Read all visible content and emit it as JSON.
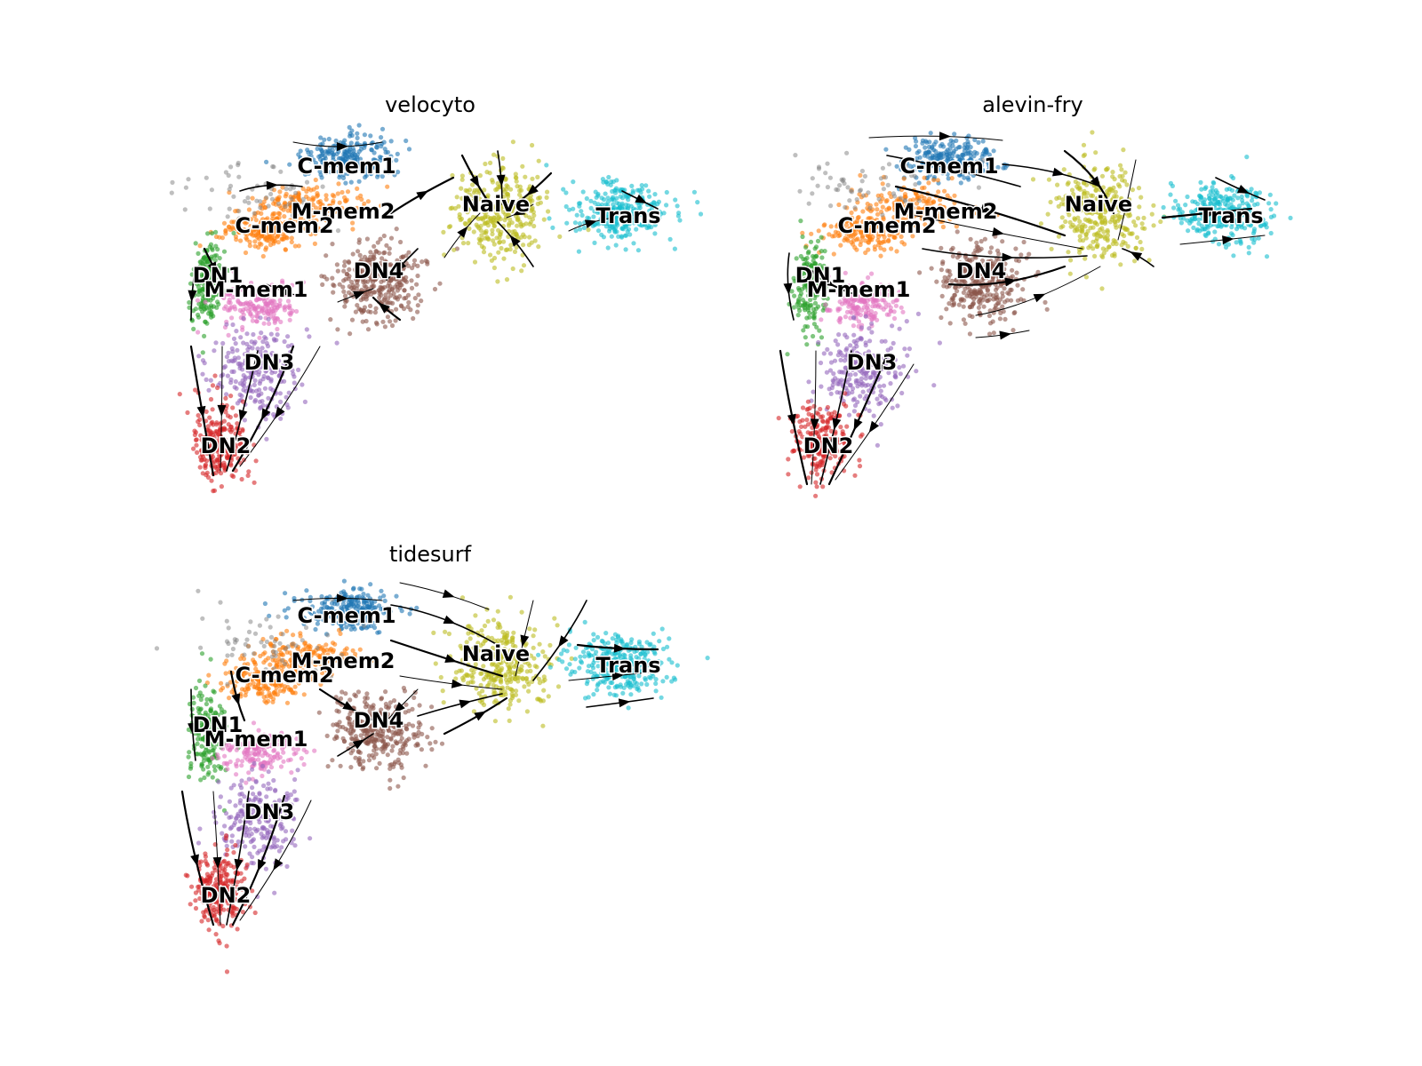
{
  "chart_data": [
    {
      "type": "scatter",
      "title": "velocyto",
      "clusters": [
        {
          "name": "C-mem1",
          "color": "#1f77b4"
        },
        {
          "name": "M-mem2",
          "color": "#ff7f0e"
        },
        {
          "name": "C-mem2",
          "color": "#ff7f0e"
        },
        {
          "name": "DN1",
          "color": "#2ca02c"
        },
        {
          "name": "M-mem1",
          "color": "#e377c2"
        },
        {
          "name": "DN4",
          "color": "#8c564b"
        },
        {
          "name": "DN3",
          "color": "#9467bd"
        },
        {
          "name": "DN2",
          "color": "#d62728"
        },
        {
          "name": "Naive",
          "color": "#bcbd22"
        },
        {
          "name": "Trans",
          "color": "#17becf"
        }
      ],
      "grid": false,
      "axes": "off"
    },
    {
      "type": "scatter",
      "title": "alevin-fry",
      "clusters": [
        {
          "name": "C-mem1",
          "color": "#1f77b4"
        },
        {
          "name": "M-mem2",
          "color": "#ff7f0e"
        },
        {
          "name": "C-mem2",
          "color": "#ff7f0e"
        },
        {
          "name": "DN1",
          "color": "#2ca02c"
        },
        {
          "name": "M-mem1",
          "color": "#e377c2"
        },
        {
          "name": "DN4",
          "color": "#8c564b"
        },
        {
          "name": "DN3",
          "color": "#9467bd"
        },
        {
          "name": "DN2",
          "color": "#d62728"
        },
        {
          "name": "Naive",
          "color": "#bcbd22"
        },
        {
          "name": "Trans",
          "color": "#17becf"
        }
      ],
      "grid": false,
      "axes": "off"
    },
    {
      "type": "scatter",
      "title": "tidesurf",
      "clusters": [
        {
          "name": "C-mem1",
          "color": "#1f77b4"
        },
        {
          "name": "M-mem2",
          "color": "#ff7f0e"
        },
        {
          "name": "C-mem2",
          "color": "#ff7f0e"
        },
        {
          "name": "DN1",
          "color": "#2ca02c"
        },
        {
          "name": "M-mem1",
          "color": "#e377c2"
        },
        {
          "name": "DN4",
          "color": "#8c564b"
        },
        {
          "name": "DN3",
          "color": "#9467bd"
        },
        {
          "name": "DN2",
          "color": "#d62728"
        },
        {
          "name": "Naive",
          "color": "#bcbd22"
        },
        {
          "name": "Trans",
          "color": "#17becf"
        }
      ],
      "grid": false,
      "axes": "off"
    }
  ]
}
